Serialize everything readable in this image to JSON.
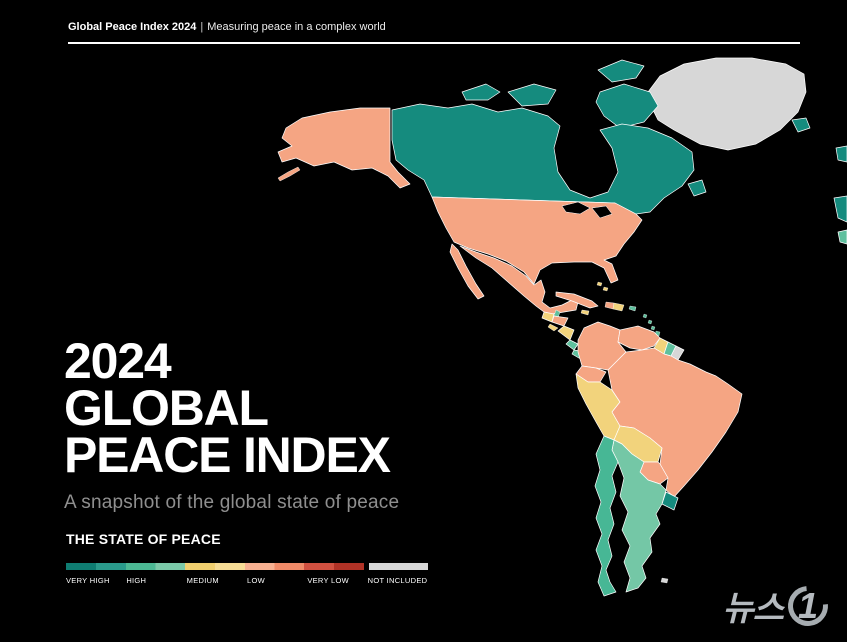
{
  "header": {
    "title": "Global Peace Index 2024",
    "separator": "|",
    "tagline": "Measuring peace in a complex world"
  },
  "hero": {
    "line1": "2024",
    "line2": "GLOBAL",
    "line3": "PEACE INDEX",
    "subtitle": "A snapshot of the global state of peace"
  },
  "legend": {
    "heading": "THE STATE OF PEACE",
    "items": [
      {
        "label": "VERY HIGH",
        "colors": [
          "#0f7d72",
          "#2a9a8b"
        ]
      },
      {
        "label": "HIGH",
        "colors": [
          "#4cb893",
          "#7bc9a8"
        ]
      },
      {
        "label": "MEDIUM",
        "colors": [
          "#f0cf6e",
          "#f6dc95"
        ]
      },
      {
        "label": "LOW",
        "colors": [
          "#f6b091",
          "#ef8a68"
        ]
      },
      {
        "label": "VERY LOW",
        "colors": [
          "#d05040",
          "#b03226"
        ]
      },
      {
        "label": "NOT INCLUDED",
        "colors": [
          "#d7d7d7"
        ],
        "gap_before": true
      }
    ]
  },
  "watermark": {
    "text": "뉴스",
    "digit": "1"
  },
  "map": {
    "ocean_color": "#000000",
    "border_color": "#ffffff",
    "lakes_color": "#000000",
    "region_colors": {
      "greenland": "#d7d7d7",
      "canada": "#158b7e",
      "newfoundland": "#158b7e",
      "alaska": "#f5a583",
      "usa": "#f5a583",
      "mexico": "#f5a583",
      "guatemala": "#f2d37c",
      "belize": "#5fc09e",
      "honduras": "#f5a583",
      "el_salvador": "#f2d37c",
      "nicaragua": "#f2d37c",
      "costa_rica": "#5fc09e",
      "panama": "#5fc09e",
      "cuba": "#f5a583",
      "haiti": "#f5a583",
      "dominican_republic": "#f2d37c",
      "jamaica": "#f2d37c",
      "puerto_rico": "#5fc09e",
      "bahamas": "#f2d37c",
      "lesser_antilles": "#5fc09e",
      "trinidad_tobago": "#5fc09e",
      "colombia": "#f5a583",
      "venezuela": "#f5a583",
      "guyana": "#f2d37c",
      "suriname": "#5fc09e",
      "french_guiana": "#d7d7d7",
      "ecuador": "#f5a583",
      "peru": "#f2d37c",
      "brazil": "#f5a583",
      "bolivia": "#f2d37c",
      "paraguay": "#f5a583",
      "uruguay": "#158b7e",
      "chile": "#47b795",
      "argentina": "#74c7a6",
      "falkland_islands": "#d7d7d7",
      "iceland": "#158b7e",
      "edge_fragment_north": "#158b7e",
      "edge_fragment_mid": "#158b7e",
      "edge_fragment_south": "#5fc09e"
    }
  }
}
